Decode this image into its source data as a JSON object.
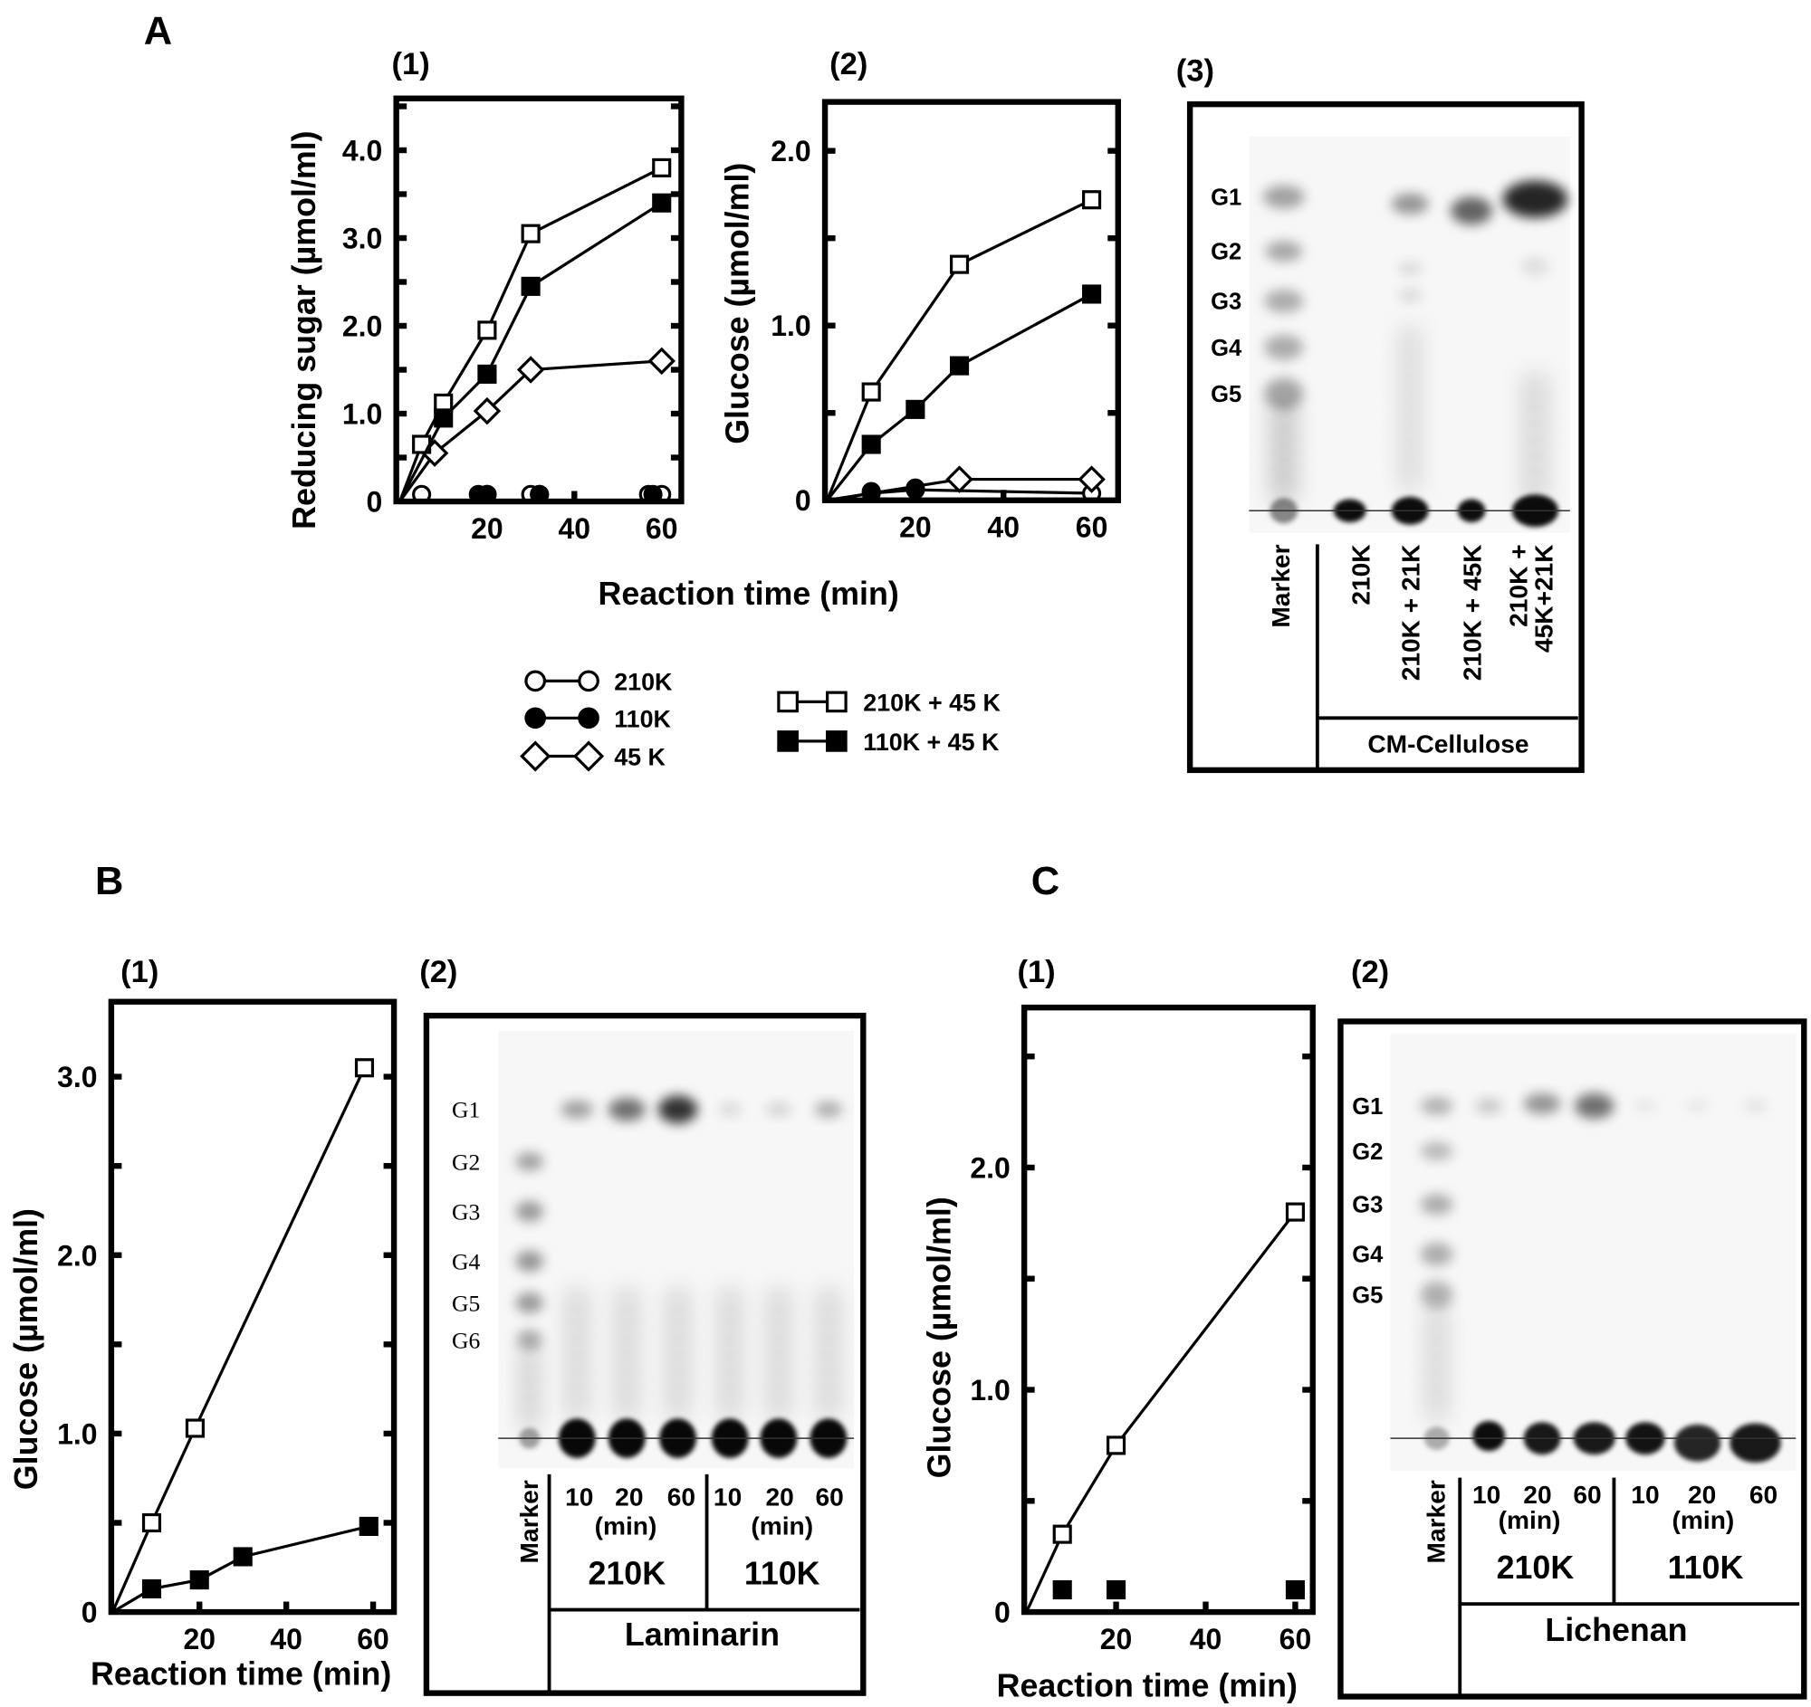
{
  "panels": {
    "A": "A",
    "A1": "(1)",
    "A2": "(2)",
    "A3": "(3)",
    "B": "B",
    "B1": "(1)",
    "B2": "(2)",
    "C": "C",
    "C1": "(1)",
    "C2": "(2)"
  },
  "legend": {
    "items": [
      {
        "label": "210K",
        "marker": "open-circle"
      },
      {
        "label": "110K",
        "marker": "filled-circle"
      },
      {
        "label": "45 K",
        "marker": "open-diamond"
      },
      {
        "label": "210K + 45 K",
        "marker": "open-square"
      },
      {
        "label": "110K + 45 K",
        "marker": "filled-square"
      }
    ]
  },
  "chart_data": [
    {
      "id": "A1",
      "type": "line",
      "xlabel": "Reaction time (min)",
      "ylabel": "Reducing sugar (µmol/ml)",
      "xlim": [
        -0.8,
        64.5
      ],
      "ylim": [
        0,
        4.59
      ],
      "xticks": [
        20,
        40,
        60
      ],
      "xtick_labels": [
        "20",
        "40",
        "60"
      ],
      "yticks": [
        0,
        1,
        2,
        3,
        4
      ],
      "ytick_labels": [
        "0",
        "1.0",
        "2.0",
        "3.0",
        "4.0"
      ],
      "series": [
        {
          "name": "210K",
          "marker": "open-circle",
          "x": [
            0,
            5,
            20,
            30,
            32,
            57,
            60
          ],
          "y": [
            0,
            0.08,
            0.08,
            0.08,
            0.08,
            0.08,
            0.08
          ],
          "line": false
        },
        {
          "name": "110K",
          "marker": "filled-circle",
          "x": [
            18,
            20,
            32,
            58
          ],
          "y": [
            0.08,
            0.08,
            0.08,
            0.08
          ],
          "line": false
        },
        {
          "name": "45 K",
          "marker": "open-diamond",
          "x": [
            0,
            8,
            20,
            30,
            60
          ],
          "y": [
            0,
            0.55,
            1.03,
            1.5,
            1.6
          ],
          "line": true
        },
        {
          "name": "210K + 45 K",
          "marker": "open-square",
          "x": [
            0,
            5,
            10,
            20,
            30,
            60
          ],
          "y": [
            0,
            0.65,
            1.12,
            1.95,
            3.05,
            3.8
          ],
          "line": true
        },
        {
          "name": "110K + 45 K",
          "marker": "filled-square",
          "x": [
            0,
            10,
            20,
            30,
            60
          ],
          "y": [
            0,
            0.95,
            1.45,
            2.45,
            3.4
          ],
          "line": true
        }
      ]
    },
    {
      "id": "A2",
      "type": "line",
      "xlabel": "Reaction time (min)",
      "ylabel": "Glucose (µmol/ml)",
      "xlim": [
        -0.5,
        66
      ],
      "ylim": [
        0,
        2.28
      ],
      "xticks": [
        20,
        40,
        60
      ],
      "xtick_labels": [
        "20",
        "40",
        "60"
      ],
      "yticks": [
        0,
        1,
        2
      ],
      "ytick_labels": [
        "0",
        "1.0",
        "2.0"
      ],
      "series": [
        {
          "name": "210K",
          "marker": "open-circle",
          "x": [
            0,
            10,
            20,
            60
          ],
          "y": [
            0,
            0.04,
            0.06,
            0.04
          ],
          "line": true
        },
        {
          "name": "110K",
          "marker": "filled-circle",
          "x": [
            10,
            20
          ],
          "y": [
            0.05,
            0.07
          ],
          "line": false
        },
        {
          "name": "45 K",
          "marker": "open-diamond",
          "x": [
            0,
            30,
            60
          ],
          "y": [
            0,
            0.12,
            0.12
          ],
          "line": true
        },
        {
          "name": "210K + 45 K",
          "marker": "open-square",
          "x": [
            0,
            10,
            30,
            60
          ],
          "y": [
            0,
            0.62,
            1.35,
            1.72
          ],
          "line": true
        },
        {
          "name": "110K + 45 K",
          "marker": "filled-square",
          "x": [
            0,
            10,
            20,
            30,
            60
          ],
          "y": [
            0,
            0.32,
            0.52,
            0.77,
            1.18
          ],
          "line": true
        }
      ]
    },
    {
      "id": "B1",
      "type": "line",
      "xlabel": "Reaction time (min)",
      "ylabel": "Glucose (µmol/ml)",
      "xlim": [
        -0.3,
        64.8
      ],
      "ylim": [
        0,
        3.42
      ],
      "xticks": [
        20,
        40,
        60
      ],
      "xtick_labels": [
        "20",
        "40",
        "60"
      ],
      "yticks": [
        0,
        1,
        2,
        3
      ],
      "ytick_labels": [
        "0",
        "1.0",
        "2.0",
        "3.0"
      ],
      "series": [
        {
          "name": "210K",
          "marker": "open-square",
          "x": [
            0,
            9,
            19,
            58
          ],
          "y": [
            0,
            0.5,
            1.03,
            3.05
          ],
          "line": true
        },
        {
          "name": "110K",
          "marker": "filled-square",
          "x": [
            0,
            9,
            20,
            30,
            59
          ],
          "y": [
            0,
            0.13,
            0.18,
            0.31,
            0.48
          ],
          "line": true
        }
      ]
    },
    {
      "id": "C1",
      "type": "line",
      "xlabel": "Reaction time (min)",
      "ylabel": "Glucose (µmol/ml)",
      "xlim": [
        -0.5,
        63.9
      ],
      "ylim": [
        0,
        2.72
      ],
      "xticks": [
        20,
        40,
        60
      ],
      "xtick_labels": [
        "20",
        "40",
        "60"
      ],
      "yticks": [
        0,
        1,
        2
      ],
      "ytick_labels": [
        "0",
        "1.0",
        "2.0"
      ],
      "series": [
        {
          "name": "210K",
          "marker": "open-square",
          "x": [
            0,
            8,
            20,
            60
          ],
          "y": [
            0,
            0.35,
            0.75,
            1.8
          ],
          "line": true
        },
        {
          "name": "110K",
          "marker": "filled-square",
          "x": [
            8,
            20,
            60
          ],
          "y": [
            0.1,
            0.1,
            0.1
          ],
          "line": false
        }
      ]
    }
  ],
  "gels": {
    "A3": {
      "standards": [
        "G1",
        "G2",
        "G3",
        "G4",
        "G5"
      ],
      "lanes": [
        "Marker",
        "210K",
        "210K + 21K",
        "210K + 45K",
        "210K +",
        "45K+21K"
      ],
      "substrate": "CM-Cellulose"
    },
    "B2": {
      "standards": [
        "G1",
        "G2",
        "G3",
        "G4",
        "G5",
        "G6"
      ],
      "marker": "Marker",
      "times": [
        "10",
        "20",
        "60",
        "10",
        "20",
        "60"
      ],
      "min": "(min)",
      "enzymes": [
        "210K",
        "110K"
      ],
      "substrate": "Laminarin"
    },
    "C2": {
      "standards": [
        "G1",
        "G2",
        "G3",
        "G4",
        "G5"
      ],
      "marker": "Marker",
      "times": [
        "10",
        "20",
        "60",
        "10",
        "20",
        "60"
      ],
      "min": "(min)",
      "enzymes": [
        "210K",
        "110K"
      ],
      "substrate": "Lichenan"
    }
  }
}
